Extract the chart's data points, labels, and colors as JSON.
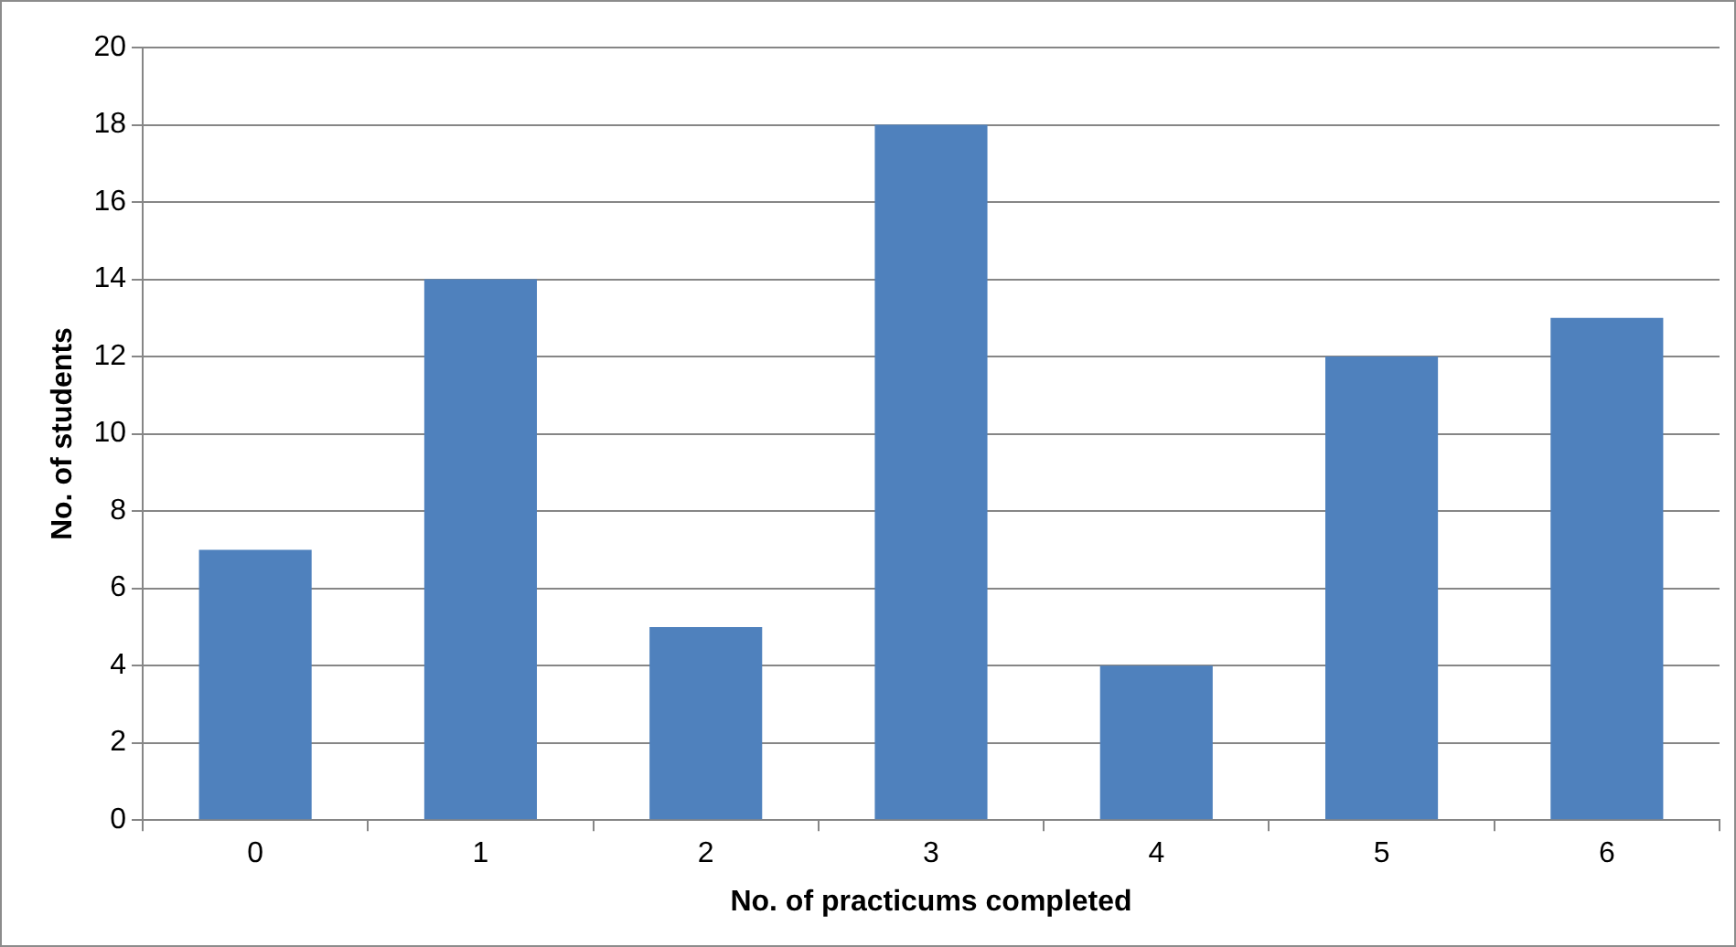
{
  "chart_data": {
    "type": "bar",
    "xlabel": "No. of practicums completed",
    "ylabel": "No. of students",
    "categories": [
      "0",
      "1",
      "2",
      "3",
      "4",
      "5",
      "6"
    ],
    "values": [
      7,
      14,
      5,
      18,
      4,
      12,
      13
    ],
    "color": "#4f81bd",
    "ylim": [
      0,
      20
    ],
    "yticks": [
      0,
      2,
      4,
      6,
      8,
      10,
      12,
      14,
      16,
      18,
      20
    ],
    "grid": "y"
  }
}
